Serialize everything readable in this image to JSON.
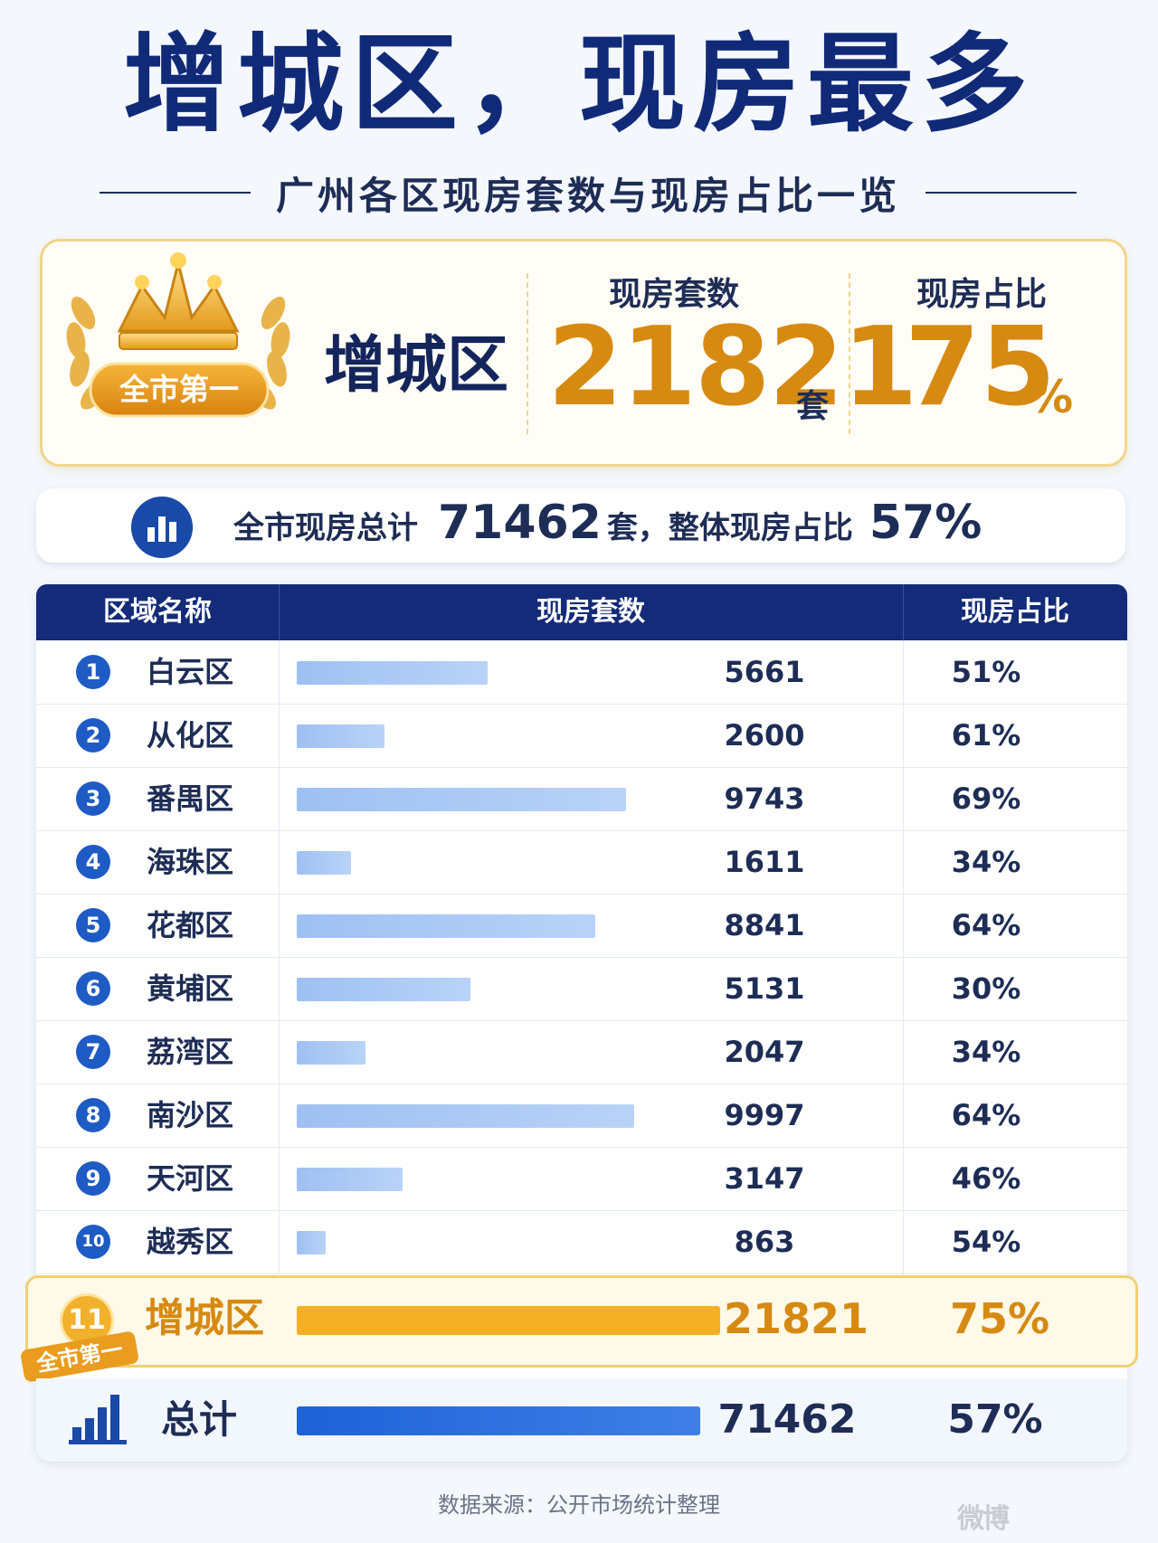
{
  "title": "增城区，现房最多",
  "subtitle": "广州各区现房套数与现房占比一览",
  "champion": {
    "badge": "全市第一",
    "district": "增城区",
    "count_label": "现房套数",
    "count": "21821",
    "count_unit": "套",
    "ratio_label": "现房占比",
    "ratio": "75",
    "ratio_unit": "%"
  },
  "summary_line": {
    "prefix": "全市现房总计",
    "total": "71462",
    "unit_mid": "套，整体现房占比",
    "ratio": "57%"
  },
  "table": {
    "headers": [
      "区域名称",
      "现房套数",
      "现房占比"
    ]
  },
  "chart_data": {
    "type": "bar",
    "categories": [
      "白云区",
      "从化区",
      "番禺区",
      "海珠区",
      "花都区",
      "黄埔区",
      "荔湾区",
      "南沙区",
      "天河区",
      "越秀区",
      "增城区"
    ],
    "ranks": [
      "1",
      "2",
      "3",
      "4",
      "5",
      "6",
      "7",
      "8",
      "9",
      "10",
      "11"
    ],
    "values": [
      5661,
      2600,
      9743,
      1611,
      8841,
      5131,
      2047,
      9997,
      3147,
      863,
      21821
    ],
    "value_labels": [
      "5661",
      "2600",
      "9743",
      "1611",
      "8841",
      "5131",
      "2047",
      "9997",
      "3147",
      "863",
      "21821"
    ],
    "ratios": [
      "51%",
      "61%",
      "69%",
      "34%",
      "64%",
      "30%",
      "34%",
      "64%",
      "46%",
      "54%",
      "75%"
    ],
    "highlight_index": 10,
    "highlight_tag": "全市第一",
    "total": {
      "label": "总计",
      "value": 71462,
      "value_label": "71462",
      "ratio": "57%"
    }
  },
  "colors": {
    "navy": "#132b78",
    "gold": "#d68a12",
    "bar_light": "#a8c8f4",
    "bar_gold": "#f4b024",
    "bar_total": "#1e62d8"
  },
  "footer": {
    "source": "数据来源：公开市场统计整理",
    "watermark": "微博"
  }
}
